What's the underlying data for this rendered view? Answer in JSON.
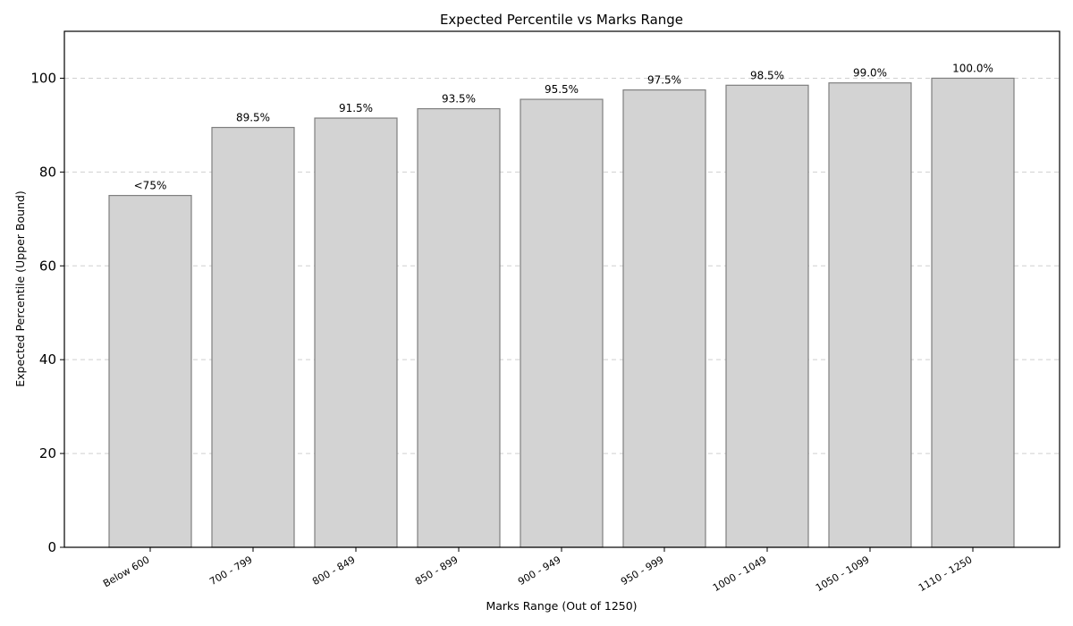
{
  "chart_data": {
    "type": "bar",
    "title": "Expected Percentile vs Marks Range",
    "xlabel": "Marks Range (Out of 1250)",
    "ylabel": "Expected Percentile (Upper Bound)",
    "categories": [
      "Below 600",
      "700 - 799",
      "800 - 849",
      "850 - 899",
      "900 - 949",
      "950 - 999",
      "1000 - 1049",
      "1050 - 1099",
      "1110 - 1250"
    ],
    "values": [
      75,
      89.5,
      91.5,
      93.5,
      95.5,
      97.5,
      98.5,
      99.0,
      100.0
    ],
    "data_labels": [
      "<75%",
      "89.5%",
      "91.5%",
      "93.5%",
      "95.5%",
      "97.5%",
      "98.5%",
      "99.0%",
      "100.0%"
    ],
    "ylim": [
      0,
      110
    ],
    "yticks": [
      0,
      20,
      40,
      60,
      80,
      100
    ],
    "grid": "horizontal-dashed",
    "bar_color": "#d3d3d3",
    "bar_edge_color": "#7f7f7f"
  }
}
